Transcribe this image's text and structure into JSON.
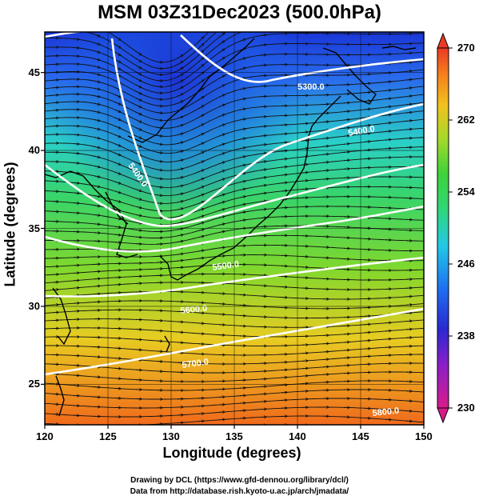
{
  "title": "MSM 03Z31Dec2023 (500.0hPa)",
  "map": {
    "x_label": "Longitude (degrees)",
    "y_label": "Latitude  (degrees)",
    "x_ticks": [
      "120",
      "125",
      "130",
      "135",
      "140",
      "145",
      "150"
    ],
    "y_ticks": [
      "45",
      "40",
      "35",
      "30",
      "25"
    ],
    "lon_range": [
      120,
      150
    ],
    "lat_range": [
      22.4,
      47.6
    ],
    "contour_labels": [
      "5300.0",
      "5400.0",
      "5400.0",
      "5500.0",
      "5600.0",
      "5700.0",
      "5800.0"
    ],
    "colorbar": {
      "min": 230,
      "max": 270,
      "tick_labels": [
        "270",
        "262",
        "254",
        "246",
        "238",
        "230"
      ],
      "colors": [
        "#d81b8a",
        "#9b1fc0",
        "#3a2fd8",
        "#1e6ff0",
        "#22c8e6",
        "#2fd67a",
        "#3ed23a",
        "#9cd62a",
        "#f2c21f",
        "#f5851c",
        "#ea3a24"
      ]
    }
  },
  "credits": {
    "line1": "Drawing by DCL (https://www.gfd-dennou.org/library/dcl/)",
    "line2": "Data from http://database.rish.kyoto-u.ac.jp/arch/jmadata/"
  }
}
